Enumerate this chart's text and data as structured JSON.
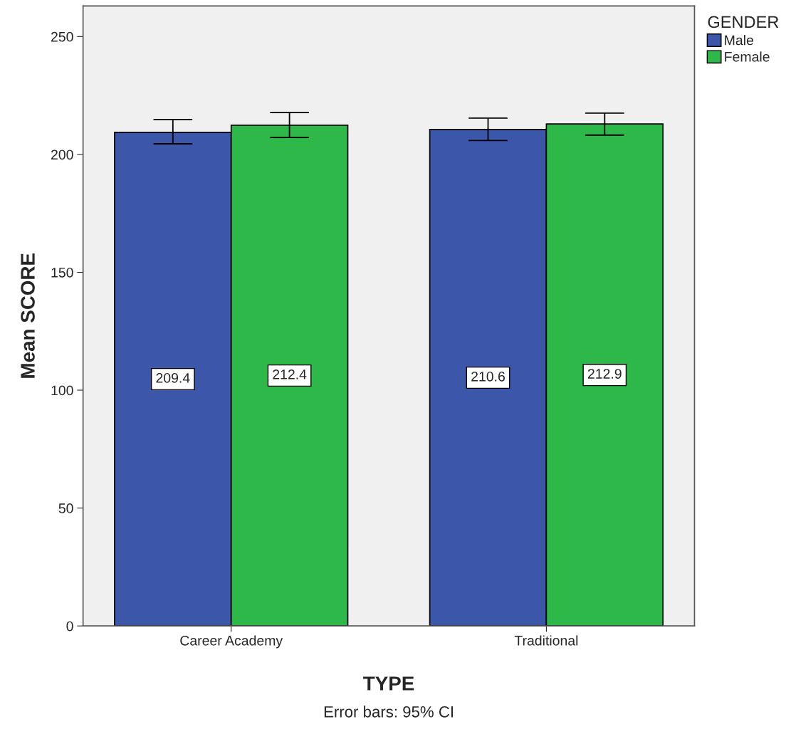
{
  "chart_data": {
    "type": "bar",
    "xlabel": "TYPE",
    "ylabel": "Mean SCORE",
    "legend_title": "GENDER",
    "legend": "top right",
    "categories": [
      "Career Academy",
      "Traditional"
    ],
    "series": [
      {
        "name": "Male",
        "color": "#3c56aa",
        "values": [
          209.4,
          210.6
        ],
        "errors": [
          [
            204.5,
            214.8
          ],
          [
            205.9,
            215.4
          ]
        ]
      },
      {
        "name": "Female",
        "color": "#2eb84a",
        "values": [
          212.4,
          212.9
        ],
        "errors": [
          [
            207.2,
            217.8
          ],
          [
            208.2,
            217.5
          ]
        ]
      }
    ],
    "data_labels": true,
    "ylim": [
      0,
      263
    ],
    "yticks": [
      0,
      50,
      100,
      150,
      200,
      250
    ],
    "grid": false,
    "annotations": [
      "Error bars: 95% CI"
    ]
  }
}
